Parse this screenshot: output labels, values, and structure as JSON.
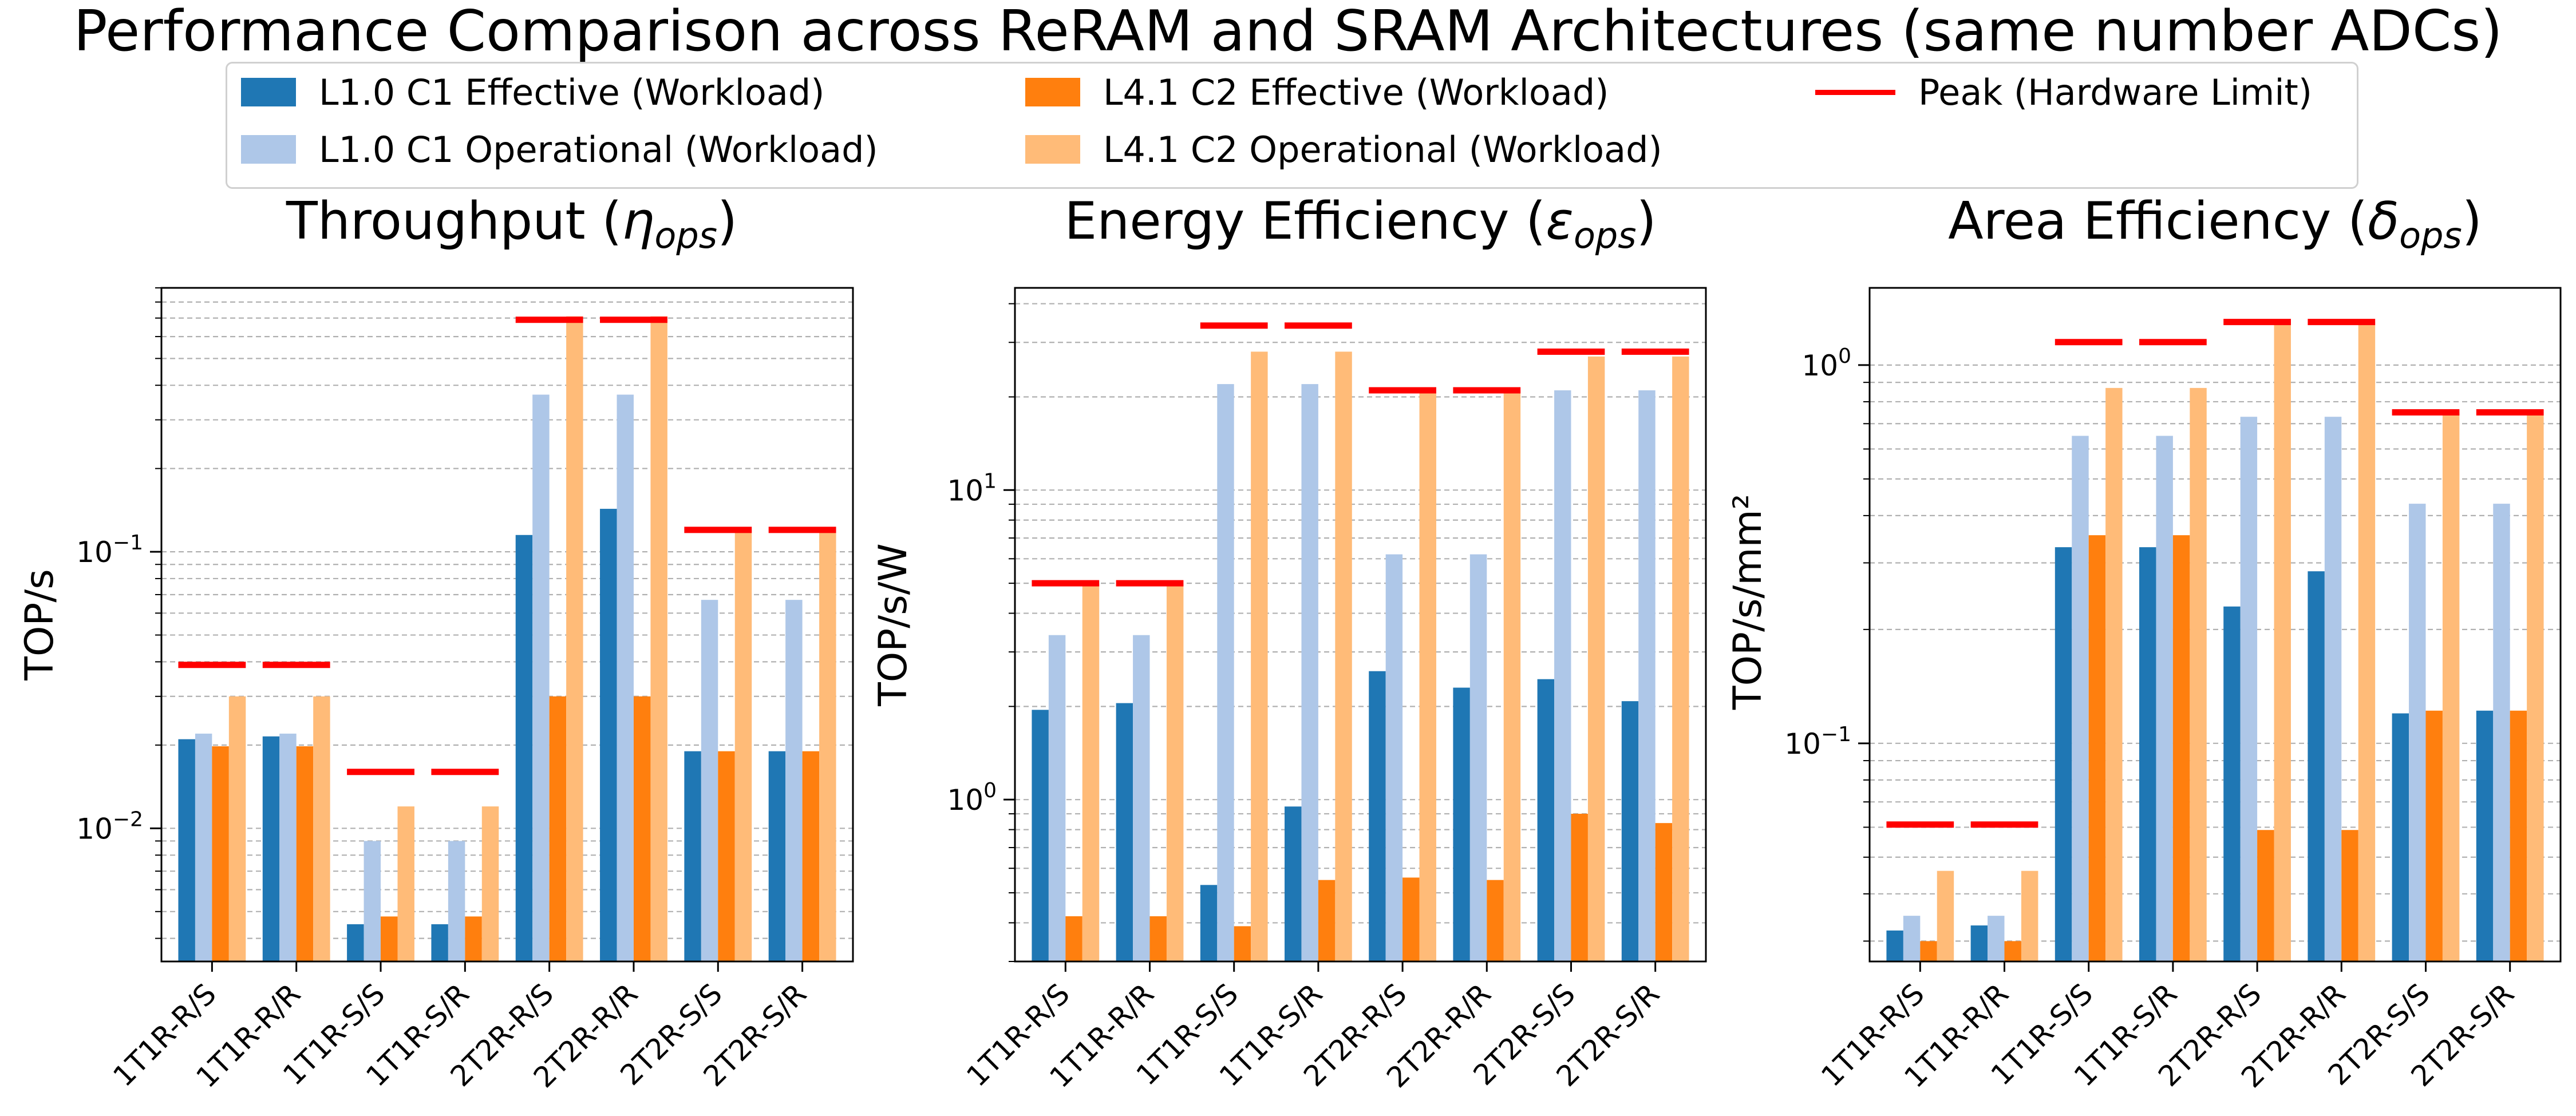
{
  "figure": {
    "title": "Performance Comparison across ReRAM and SRAM Architectures (same number ADCs)"
  },
  "legend": {
    "items": [
      {
        "label": "L1.0 C1 Effective (Workload)",
        "color": "#1f77b4",
        "kind": "bar"
      },
      {
        "label": "L1.0 C1 Operational (Workload)",
        "color": "#aec7e8",
        "kind": "bar"
      },
      {
        "label": "L4.1 C2 Effective (Workload)",
        "color": "#ff7f0e",
        "kind": "bar"
      },
      {
        "label": "L4.1 C2 Operational (Workload)",
        "color": "#ffbb78",
        "kind": "bar"
      },
      {
        "label": "Peak (Hardware Limit)",
        "color": "#ff0000",
        "kind": "line"
      }
    ]
  },
  "chart_data": [
    {
      "type": "bar",
      "title_text": "Throughput (",
      "title_symbol": "η",
      "title_sub": "ops",
      "title_close": ")",
      "ylabel": "TOP/s",
      "yscale": "log",
      "ylim": [
        0.0033,
        0.9
      ],
      "major_ticks": [
        {
          "value": 0.01,
          "base": "10",
          "exp": "−2"
        },
        {
          "value": 0.1,
          "base": "10",
          "exp": "−1"
        }
      ],
      "categories": [
        "1T1R-R/S",
        "1T1R-R/R",
        "1T1R-S/S",
        "1T1R-S/R",
        "2T2R-R/S",
        "2T2R-R/R",
        "2T2R-S/S",
        "2T2R-S/R"
      ],
      "series": [
        {
          "name": "L1.0 C1 Effective (Workload)",
          "values": [
            0.021,
            0.0215,
            0.0045,
            0.0045,
            0.115,
            0.143,
            0.019,
            0.019
          ]
        },
        {
          "name": "L1.0 C1 Operational (Workload)",
          "values": [
            0.022,
            0.022,
            0.009,
            0.009,
            0.37,
            0.37,
            0.067,
            0.067
          ]
        },
        {
          "name": "L4.1 C2 Effective (Workload)",
          "values": [
            0.0198,
            0.0198,
            0.0048,
            0.0048,
            0.03,
            0.03,
            0.019,
            0.019
          ]
        },
        {
          "name": "L4.1 C2 Operational (Workload)",
          "values": [
            0.03,
            0.03,
            0.012,
            0.012,
            0.71,
            0.71,
            0.12,
            0.12
          ]
        }
      ],
      "peak": [
        0.039,
        0.039,
        0.016,
        0.016,
        0.69,
        0.69,
        0.12,
        0.12
      ]
    },
    {
      "type": "bar",
      "title_text": "Energy Efficiency (",
      "title_symbol": "ε",
      "title_sub": "ops",
      "title_close": ")",
      "ylabel": "TOP/s/W",
      "yscale": "log",
      "ylim": [
        0.3,
        45
      ],
      "major_ticks": [
        {
          "value": 1,
          "base": "10",
          "exp": "0"
        },
        {
          "value": 10,
          "base": "10",
          "exp": "1"
        }
      ],
      "categories": [
        "1T1R-R/S",
        "1T1R-R/R",
        "1T1R-S/S",
        "1T1R-S/R",
        "2T2R-R/S",
        "2T2R-R/R",
        "2T2R-S/S",
        "2T2R-S/R"
      ],
      "series": [
        {
          "name": "L1.0 C1 Effective (Workload)",
          "values": [
            1.95,
            2.05,
            0.53,
            0.95,
            2.6,
            2.3,
            2.45,
            2.08
          ]
        },
        {
          "name": "L1.0 C1 Operational (Workload)",
          "values": [
            3.4,
            3.4,
            22,
            22,
            6.2,
            6.2,
            21,
            21
          ]
        },
        {
          "name": "L4.1 C2 Effective (Workload)",
          "values": [
            0.42,
            0.42,
            0.39,
            0.55,
            0.56,
            0.55,
            0.9,
            0.84
          ]
        },
        {
          "name": "L4.1 C2 Operational (Workload)",
          "values": [
            5,
            5,
            28,
            28,
            21,
            21,
            27,
            27
          ]
        }
      ],
      "peak": [
        5,
        5,
        34,
        34,
        21,
        21,
        28,
        28
      ]
    },
    {
      "type": "bar",
      "title_text": "Area Efficiency (",
      "title_symbol": "δ",
      "title_sub": "ops",
      "title_close": ")",
      "ylabel": "TOP/s/mm²",
      "yscale": "log",
      "ylim": [
        0.0265,
        1.6
      ],
      "major_ticks": [
        {
          "value": 0.1,
          "base": "10",
          "exp": "−1"
        },
        {
          "value": 1,
          "base": "10",
          "exp": "0"
        }
      ],
      "categories": [
        "1T1R-R/S",
        "1T1R-R/R",
        "1T1R-S/S",
        "1T1R-S/R",
        "2T2R-R/S",
        "2T2R-R/R",
        "2T2R-S/S",
        "2T2R-S/R"
      ],
      "series": [
        {
          "name": "L1.0 C1 Effective (Workload)",
          "values": [
            0.032,
            0.033,
            0.33,
            0.33,
            0.23,
            0.285,
            0.12,
            0.122
          ]
        },
        {
          "name": "L1.0 C1 Operational (Workload)",
          "values": [
            0.035,
            0.035,
            0.65,
            0.65,
            0.73,
            0.73,
            0.43,
            0.43
          ]
        },
        {
          "name": "L4.1 C2 Effective (Workload)",
          "values": [
            0.03,
            0.03,
            0.355,
            0.355,
            0.059,
            0.059,
            0.122,
            0.122
          ]
        },
        {
          "name": "L4.1 C2 Operational (Workload)",
          "values": [
            0.046,
            0.046,
            0.87,
            0.87,
            1.3,
            1.3,
            0.75,
            0.75
          ]
        }
      ],
      "peak": [
        0.061,
        0.061,
        1.15,
        1.15,
        1.3,
        1.3,
        0.75,
        0.75
      ]
    }
  ]
}
